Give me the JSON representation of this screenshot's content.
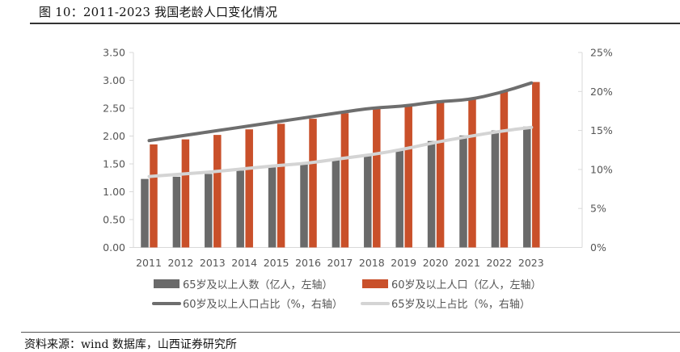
{
  "header": {
    "title": "图 10：2011-2023 我国老龄人口变化情况"
  },
  "footer": {
    "source": "资料来源：wind 数据库，山西证券研究所"
  },
  "colors": {
    "pop65_bar": "#6a6a6a",
    "pop60_bar": "#c9502a",
    "share60_line": "#6e6e6e",
    "share65_line": "#d4d4d4",
    "axis": "#d9d9d9",
    "text": "#555555"
  },
  "chart_data": {
    "type": "bar",
    "title": "2011-2023 我国老龄人口变化情况",
    "xlabel": "",
    "ylabel": "",
    "y2label": "",
    "categories": [
      "2011",
      "2012",
      "2013",
      "2014",
      "2015",
      "2016",
      "2017",
      "2018",
      "2019",
      "2020",
      "2021",
      "2022",
      "2023"
    ],
    "ylim": [
      0,
      3.5
    ],
    "yticks": [
      "0.00",
      "0.50",
      "1.00",
      "1.50",
      "2.00",
      "2.50",
      "3.00",
      "3.50"
    ],
    "y2lim": [
      0,
      25
    ],
    "y2ticks": [
      "0%",
      "5%",
      "10%",
      "15%",
      "20%",
      "25%"
    ],
    "grid": false,
    "legend_position": "bottom",
    "series": [
      {
        "name": "65岁及以上人数（亿人，左轴）",
        "type": "bar",
        "axis": "left",
        "values": [
          1.23,
          1.27,
          1.32,
          1.38,
          1.44,
          1.5,
          1.58,
          1.66,
          1.76,
          1.91,
          2.01,
          2.1,
          2.17
        ]
      },
      {
        "name": "60岁及以上人口（亿人，左轴）",
        "type": "bar",
        "axis": "left",
        "values": [
          1.85,
          1.94,
          2.02,
          2.12,
          2.22,
          2.31,
          2.41,
          2.49,
          2.54,
          2.64,
          2.67,
          2.8,
          2.97
        ]
      },
      {
        "name": "60岁及以上人口占比（%，右轴）",
        "type": "line",
        "axis": "right",
        "values": [
          13.7,
          14.3,
          14.9,
          15.5,
          16.1,
          16.7,
          17.3,
          17.9,
          18.1,
          18.7,
          18.9,
          19.8,
          21.1
        ]
      },
      {
        "name": "65岁及以上占比（%，右轴）",
        "type": "line",
        "axis": "right",
        "values": [
          9.1,
          9.4,
          9.7,
          10.1,
          10.5,
          10.8,
          11.4,
          11.9,
          12.6,
          13.5,
          14.2,
          14.9,
          15.4
        ]
      }
    ]
  }
}
